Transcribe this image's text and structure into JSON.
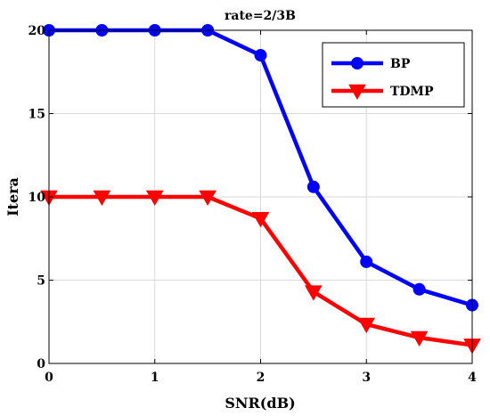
{
  "chart_data": {
    "type": "line",
    "title": "rate=2/3B",
    "xlabel": "SNR(dB)",
    "ylabel": "Itera",
    "xlim": [
      0,
      4
    ],
    "ylim": [
      0,
      20
    ],
    "xticks": [
      0,
      1,
      2,
      3,
      4
    ],
    "yticks": [
      0,
      5,
      10,
      15,
      20
    ],
    "xtick_labels": [
      "0",
      "1",
      "2",
      "3",
      "4"
    ],
    "ytick_labels": [
      "0",
      "5",
      "10",
      "15",
      "20"
    ],
    "grid": true,
    "legend_position": "top-right",
    "x": [
      0,
      0.5,
      1,
      1.5,
      2,
      2.5,
      3,
      3.5,
      4
    ],
    "series": [
      {
        "name": "BP",
        "color": "#0000ff",
        "marker": "circle",
        "values": [
          20,
          20,
          20,
          20,
          18.5,
          10.6,
          6.1,
          4.45,
          3.5
        ]
      },
      {
        "name": "TDMP",
        "color": "#ff0000",
        "marker": "triangle-down",
        "values": [
          10,
          10,
          10,
          10,
          8.7,
          4.3,
          2.35,
          1.55,
          1.1
        ]
      }
    ]
  }
}
